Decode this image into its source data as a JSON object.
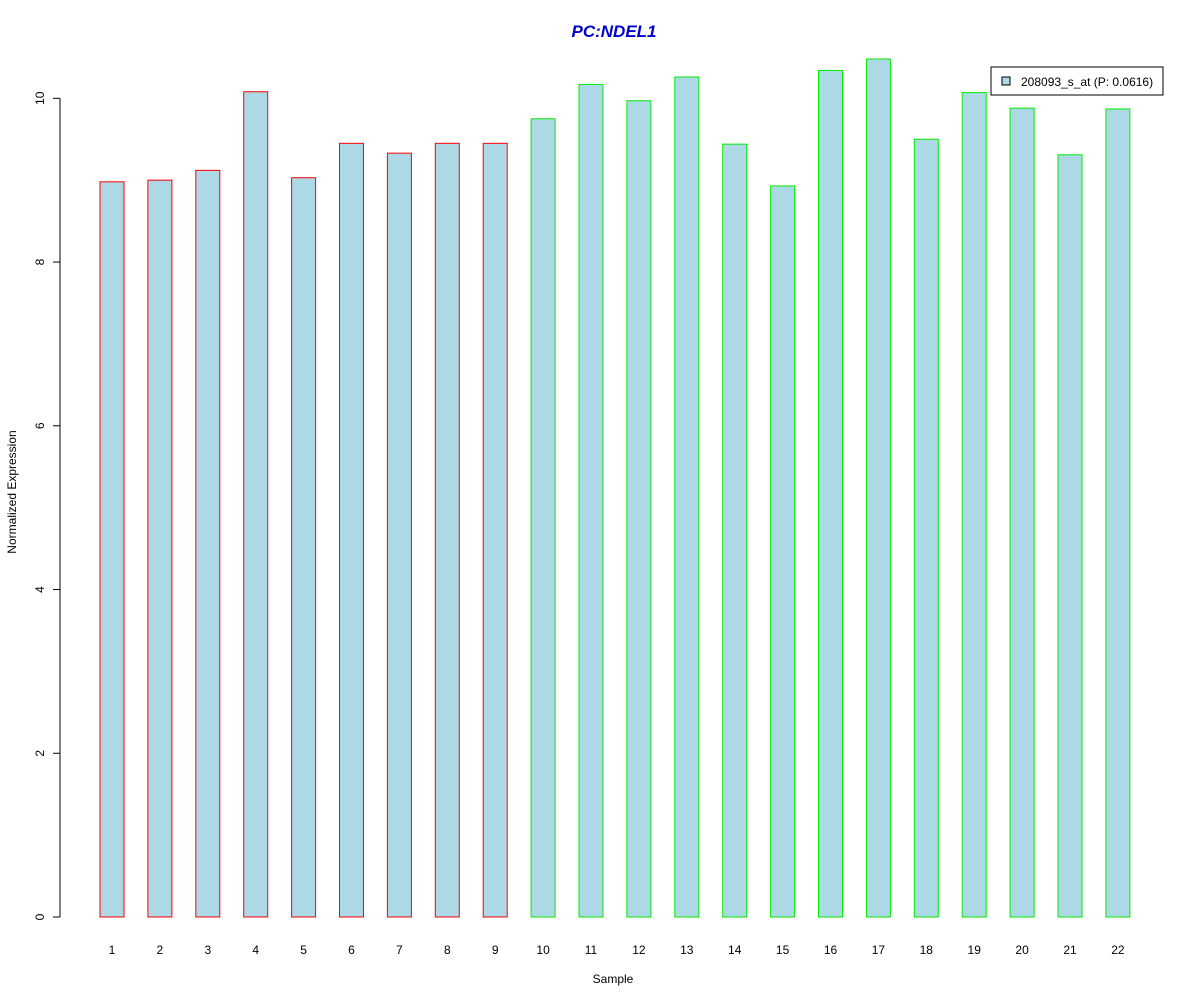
{
  "chart_data": {
    "type": "bar",
    "title": "PC:NDEL1",
    "xlabel": "Sample",
    "ylabel": "Normalized Expression",
    "categories": [
      "1",
      "2",
      "3",
      "4",
      "5",
      "6",
      "7",
      "8",
      "9",
      "10",
      "11",
      "12",
      "13",
      "14",
      "15",
      "16",
      "17",
      "18",
      "19",
      "20",
      "21",
      "22"
    ],
    "series": [
      {
        "name": "208093_s_at (P: 0.0616)",
        "values": [
          8.98,
          9.0,
          9.12,
          10.08,
          9.03,
          9.45,
          9.33,
          9.45,
          9.45,
          9.75,
          10.17,
          9.97,
          10.26,
          9.44,
          8.93,
          10.34,
          10.48,
          9.5,
          10.07,
          9.88,
          9.31,
          9.87
        ]
      }
    ],
    "group_of_bar": [
      "red",
      "red",
      "red",
      "red",
      "red",
      "red",
      "red",
      "red",
      "red",
      "green",
      "green",
      "green",
      "green",
      "green",
      "green",
      "green",
      "green",
      "green",
      "green",
      "green",
      "green",
      "green"
    ],
    "yticks": [
      0,
      2,
      4,
      6,
      8,
      10
    ],
    "ylim": [
      0,
      10.48
    ],
    "legend_position": "top-right",
    "grid": false,
    "colors": {
      "title": "#0000cc",
      "bar_fill": "#add8e6",
      "red": "#ff0000",
      "green": "#00ee00",
      "axis": "#000000"
    }
  }
}
